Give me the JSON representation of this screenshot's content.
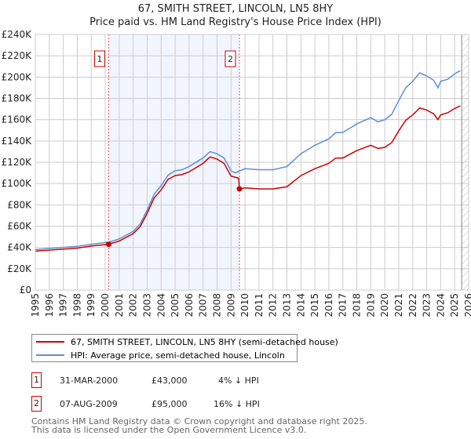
{
  "chart_data": {
    "type": "line",
    "title": "67, SMITH STREET, LINCOLN, LN5 8HY",
    "subtitle": "Price paid vs. HM Land Registry's House Price Index (HPI)",
    "xlim": [
      1995,
      2026
    ],
    "ylim": [
      0,
      240000
    ],
    "x_ticks": [
      "1995",
      "1996",
      "1997",
      "1998",
      "1999",
      "2000",
      "2001",
      "2002",
      "2003",
      "2004",
      "2005",
      "2006",
      "2007",
      "2008",
      "2009",
      "2010",
      "2011",
      "2012",
      "2013",
      "2014",
      "2015",
      "2016",
      "2017",
      "2018",
      "2019",
      "2020",
      "2021",
      "2022",
      "2023",
      "2024",
      "2025",
      "2026"
    ],
    "y_ticks": [
      {
        "v": 0,
        "label": "£0"
      },
      {
        "v": 20000,
        "label": "£20K"
      },
      {
        "v": 40000,
        "label": "£40K"
      },
      {
        "v": 60000,
        "label": "£60K"
      },
      {
        "v": 80000,
        "label": "£80K"
      },
      {
        "v": 100000,
        "label": "£100K"
      },
      {
        "v": 120000,
        "label": "£120K"
      },
      {
        "v": 140000,
        "label": "£140K"
      },
      {
        "v": 160000,
        "label": "£160K"
      },
      {
        "v": 180000,
        "label": "£180K"
      },
      {
        "v": 200000,
        "label": "£200K"
      },
      {
        "v": 220000,
        "label": "£220K"
      },
      {
        "v": 240000,
        "label": "£240K"
      }
    ],
    "grid": true,
    "shaded_range": [
      2000.25,
      2009.6
    ],
    "forecast_from": 2025.5,
    "series": [
      {
        "name": "67, SMITH STREET, LINCOLN, LN5 8HY (semi-detached house)",
        "color": "#cc0000",
        "x": [
          1995,
          1996,
          1997,
          1998,
          1999,
          2000.25,
          2001,
          2002,
          2002.5,
          2003,
          2003.5,
          2004,
          2004.5,
          2005,
          2005.5,
          2006,
          2007,
          2007.5,
          2008,
          2008.5,
          2009,
          2009.55,
          2009.6,
          2010,
          2011,
          2012,
          2013,
          2014,
          2015,
          2016,
          2016.5,
          2017,
          2018,
          2019,
          2019.5,
          2020,
          2020.5,
          2021,
          2021.5,
          2022,
          2022.5,
          2023,
          2023.5,
          2023.8,
          2024,
          2024.5,
          2025,
          2025.4
        ],
        "y": [
          36500,
          37500,
          38400,
          39400,
          41300,
          43000,
          46000,
          53000,
          59500,
          72000,
          86500,
          94000,
          104000,
          107500,
          108500,
          111000,
          119000,
          125000,
          123000,
          119000,
          107000,
          105000,
          95000,
          96000,
          95000,
          95000,
          97000,
          107500,
          114000,
          119000,
          124000,
          124000,
          131000,
          136000,
          133000,
          134000,
          138500,
          149500,
          159500,
          164500,
          171000,
          169000,
          165500,
          160000,
          164500,
          166500,
          170500,
          173000
        ]
      },
      {
        "name": "HPI: Average price, semi-detached house, Lincoln",
        "color": "#5b8fd6",
        "x": [
          1995,
          1996,
          1997,
          1998,
          1999,
          2000.25,
          2001,
          2002,
          2002.5,
          2003,
          2003.5,
          2004,
          2004.5,
          2005,
          2005.5,
          2006,
          2007,
          2007.5,
          2008,
          2008.5,
          2009,
          2009.3,
          2010,
          2011,
          2012,
          2013,
          2014,
          2015,
          2016,
          2016.5,
          2017,
          2018,
          2019,
          2019.5,
          2020,
          2020.5,
          2021,
          2021.5,
          2022,
          2022.5,
          2023,
          2023.5,
          2023.8,
          2024,
          2024.5,
          2025,
          2025.4
        ],
        "y": [
          38000,
          39000,
          40000,
          41000,
          43000,
          45000,
          48000,
          55000,
          62000,
          75000,
          90000,
          98000,
          108000,
          112000,
          113000,
          116000,
          124000,
          130000,
          128000,
          124000,
          112000,
          110000,
          114000,
          113000,
          113000,
          116000,
          128000,
          136000,
          142000,
          148000,
          148000,
          156000,
          162000,
          158000,
          160000,
          165000,
          178000,
          190000,
          196000,
          204000,
          201000,
          197000,
          190000,
          196000,
          198000,
          203000,
          206000
        ]
      }
    ],
    "annotations": [
      {
        "label": "1",
        "x": 2000.25,
        "y": 43000
      },
      {
        "label": "2",
        "x": 2009.6,
        "y": 95000
      }
    ]
  },
  "transactions": [
    {
      "id": "1",
      "date": "31-MAR-2000",
      "price": "£43,000",
      "hpi": "4% ↓ HPI"
    },
    {
      "id": "2",
      "date": "07-AUG-2009",
      "price": "£95,000",
      "hpi": "16% ↓ HPI"
    }
  ],
  "footer": {
    "line1": "Contains HM Land Registry data © Crown copyright and database right 2025.",
    "line2": "This data is licensed under the Open Government Licence v3.0."
  }
}
